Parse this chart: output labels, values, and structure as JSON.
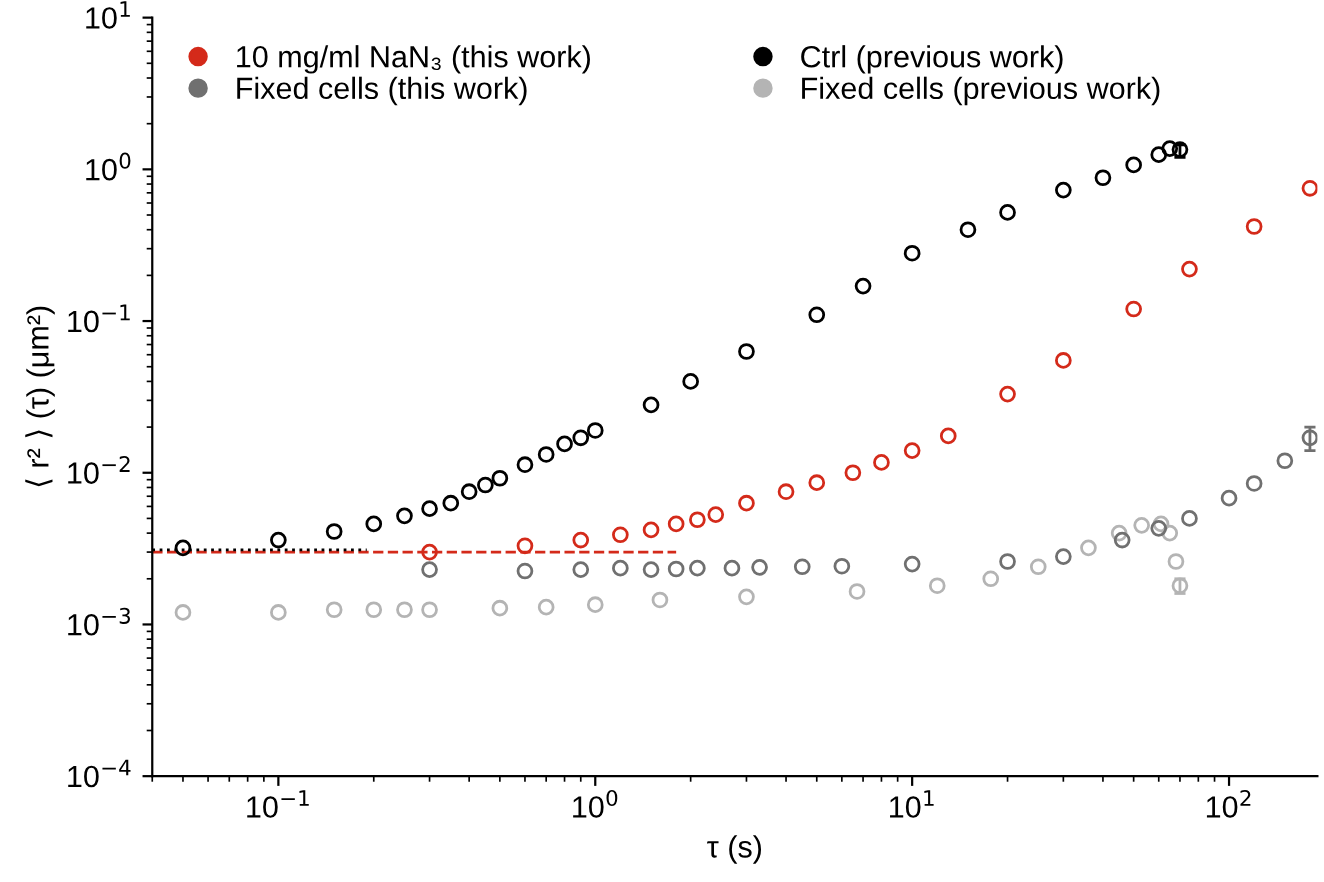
{
  "chart_data": {
    "type": "scatter",
    "xlabel": "τ (s)",
    "ylabel": "⟨ r² ⟩ (τ) (μm²)",
    "log": "xy",
    "marker": "circle",
    "grid": false,
    "legend": "top left",
    "xlim": [
      0.04,
      190
    ],
    "ylim": [
      0.0001,
      10
    ],
    "xticks": [
      {
        "value": 0.1,
        "label": "10$^{−1}$"
      },
      {
        "value": 1,
        "label": "10$^{0}$"
      },
      {
        "value": 10,
        "label": "10$^{1}$"
      },
      {
        "value": 100,
        "label": "10$^{2}$"
      }
    ],
    "yticks": [
      {
        "value": 0.0001,
        "label": "10$^{−4}$"
      },
      {
        "value": 0.001,
        "label": "10$^{−3}$"
      },
      {
        "value": 0.01,
        "label": "10$^{−2}$"
      },
      {
        "value": 0.1,
        "label": "10$^{−1}$"
      },
      {
        "value": 1,
        "label": "10$^{0}$"
      },
      {
        "value": 10,
        "label": "10$^{1}$"
      }
    ],
    "series": [
      {
        "name": "Fixed cells (previous work)",
        "color": "#b4b4b4",
        "x": [
          0.05,
          0.1,
          0.15,
          0.2,
          0.25,
          0.3,
          0.5,
          0.7,
          1,
          1.6,
          3,
          6.7,
          12,
          17.7,
          25,
          36,
          45,
          53,
          61,
          65,
          68,
          70
        ],
        "values": [
          0.0012,
          0.0012,
          0.00125,
          0.00125,
          0.00125,
          0.00125,
          0.00128,
          0.0013,
          0.00135,
          0.00145,
          0.00152,
          0.00165,
          0.0018,
          0.002,
          0.0024,
          0.0032,
          0.004,
          0.0045,
          0.0046,
          0.004,
          0.0026,
          0.0018
        ],
        "errors": [
          null,
          null,
          null,
          null,
          null,
          null,
          null,
          null,
          null,
          null,
          null,
          null,
          null,
          null,
          null,
          null,
          null,
          null,
          null,
          null,
          null,
          [
            0.0016,
            0.002
          ]
        ]
      },
      {
        "name": "Fixed cells (this work)",
        "color": "#707070",
        "x": [
          0.3,
          0.6,
          0.9,
          1.2,
          1.5,
          1.8,
          2.1,
          2.7,
          3.3,
          4.5,
          6,
          10,
          20,
          30,
          46,
          60,
          75,
          100,
          120,
          150,
          180
        ],
        "values": [
          0.0023,
          0.00225,
          0.0023,
          0.00235,
          0.0023,
          0.00232,
          0.00235,
          0.00235,
          0.00238,
          0.0024,
          0.00242,
          0.0025,
          0.0026,
          0.0028,
          0.0036,
          0.0043,
          0.005,
          0.0068,
          0.0085,
          0.012,
          0.017
        ],
        "errors": [
          null,
          null,
          null,
          null,
          null,
          null,
          null,
          null,
          null,
          null,
          null,
          null,
          null,
          null,
          null,
          null,
          null,
          null,
          null,
          null,
          [
            0.014,
            0.02
          ]
        ]
      },
      {
        "name": "10 mg/ml NaN₃ (this work)",
        "color": "#d42a1a",
        "x": [
          0.3,
          0.6,
          0.9,
          1.2,
          1.5,
          1.8,
          2.1,
          2.4,
          3,
          4,
          5,
          6.5,
          8,
          10,
          13,
          20,
          30,
          50,
          75,
          120,
          180
        ],
        "values": [
          0.003,
          0.0033,
          0.0036,
          0.0039,
          0.0042,
          0.0046,
          0.0049,
          0.0053,
          0.0063,
          0.0075,
          0.0086,
          0.01,
          0.0117,
          0.014,
          0.0175,
          0.033,
          0.055,
          0.12,
          0.22,
          0.42,
          0.75
        ]
      },
      {
        "name": "Ctrl (previous work)",
        "color": "#000000",
        "x": [
          0.05,
          0.1,
          0.15,
          0.2,
          0.25,
          0.3,
          0.35,
          0.4,
          0.45,
          0.5,
          0.6,
          0.7,
          0.8,
          0.9,
          1,
          1.5,
          2,
          3,
          5,
          7,
          10,
          15,
          20,
          30,
          40,
          50,
          60,
          65,
          70
        ],
        "values": [
          0.0032,
          0.0036,
          0.0041,
          0.0046,
          0.0052,
          0.0058,
          0.0063,
          0.0075,
          0.0083,
          0.0092,
          0.0113,
          0.0132,
          0.0155,
          0.017,
          0.019,
          0.028,
          0.04,
          0.063,
          0.11,
          0.17,
          0.28,
          0.4,
          0.52,
          0.73,
          0.88,
          1.07,
          1.25,
          1.37,
          1.35
        ],
        "errors": [
          null,
          null,
          null,
          null,
          null,
          null,
          null,
          null,
          null,
          null,
          null,
          null,
          null,
          null,
          null,
          null,
          null,
          null,
          null,
          null,
          null,
          null,
          null,
          null,
          null,
          null,
          null,
          null,
          [
            1.2,
            1.45
          ]
        ]
      },
      {
        "type": "line",
        "marker": "none",
        "color": "#d42a1a",
        "line_style": "dashed",
        "x": [
          0.04,
          1.8
        ],
        "values": [
          0.003,
          0.003
        ]
      },
      {
        "type": "line",
        "marker": "none",
        "color": "#000000",
        "line_style": "dotted",
        "x": [
          0.04,
          0.19
        ],
        "values": [
          0.0031,
          0.0031
        ]
      }
    ]
  }
}
